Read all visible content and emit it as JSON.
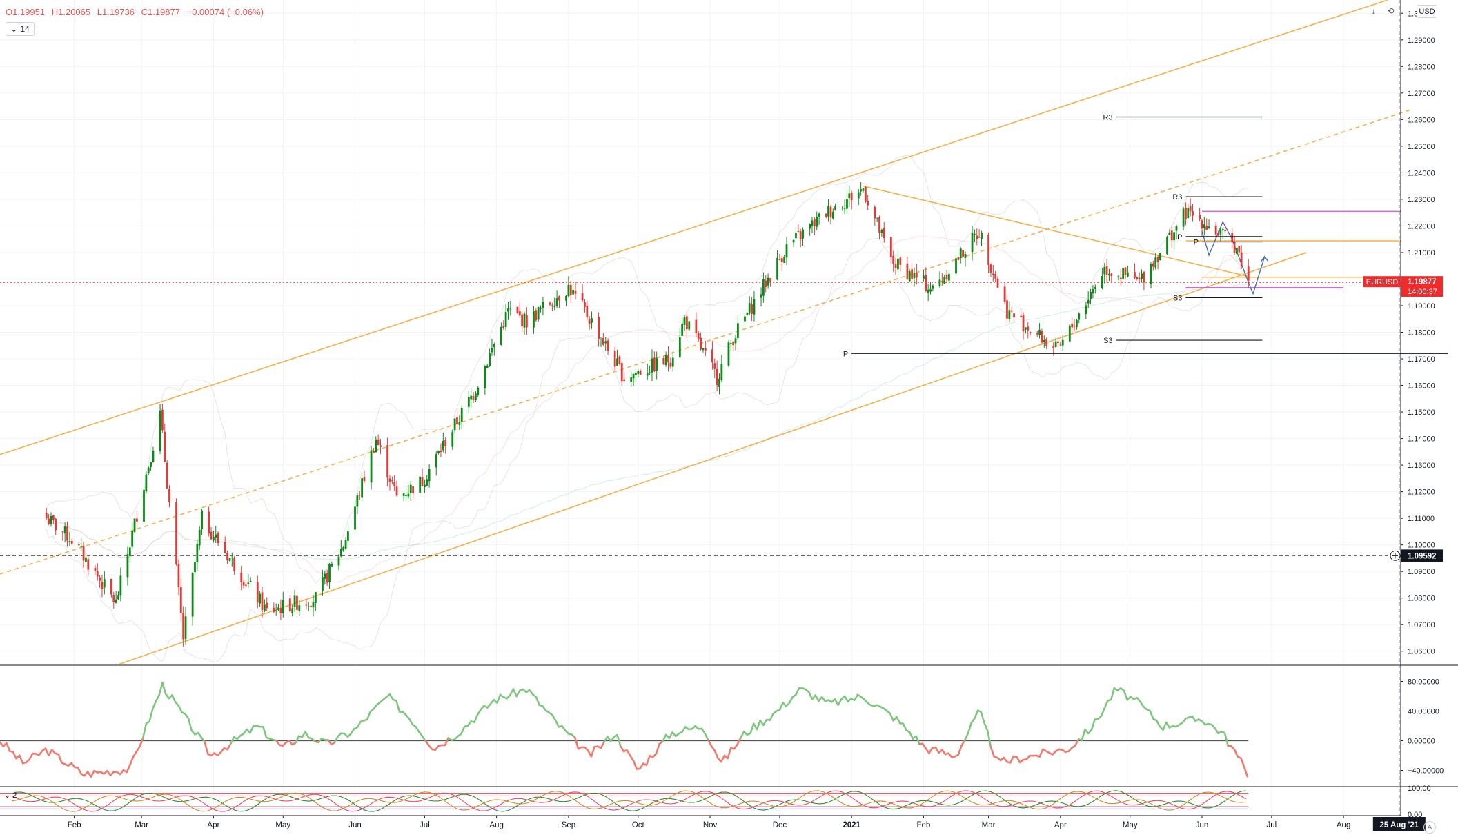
{
  "header": {
    "ohlc": {
      "open": "O1.19951",
      "high": "H1.20065",
      "low": "L1.19736",
      "close": "C1.19877",
      "change": "−0.00074 (−0.06%)"
    },
    "interval_badge": "14",
    "currency": "USD",
    "auto_label": "A",
    "sub_indicator_badge": "2"
  },
  "colors": {
    "up": "#089981",
    "up_candle": "#0b8a16",
    "down": "#e53935",
    "channel": "#f7b04a",
    "pivot": "#131722",
    "magenta": "#e040fb",
    "osc_pos": "#7fc77f",
    "osc_neg": "#f07a6e",
    "price_badge": "#ef2b2b"
  },
  "chart_data": [
    {
      "type": "candlestick",
      "symbol": "EURUSD",
      "last_price": "1.19877",
      "countdown": "14:00:37",
      "crosshair_price": "1.09592",
      "crosshair_date": "25 Aug '21",
      "y_axis": {
        "min": 1.055,
        "max": 1.305,
        "ticks": [
          "1.30000",
          "1.29000",
          "1.28000",
          "1.27000",
          "1.26000",
          "1.25000",
          "1.24000",
          "1.23000",
          "1.22000",
          "1.21000",
          "1.20000",
          "1.19000",
          "1.18000",
          "1.17000",
          "1.16000",
          "1.15000",
          "1.14000",
          "1.13000",
          "1.12000",
          "1.11000",
          "1.10000",
          "1.09000",
          "1.08000",
          "1.07000",
          "1.06000"
        ]
      },
      "x_axis": {
        "labels": [
          "Feb",
          "Mar",
          "Apr",
          "May",
          "Jun",
          "Jul",
          "Aug",
          "Sep",
          "Oct",
          "Nov",
          "Dec",
          "2021",
          "Feb",
          "Mar",
          "Apr",
          "May",
          "Jun",
          "Jul",
          "Aug"
        ]
      },
      "anchors": [
        [
          "2020-01-20",
          1.11
        ],
        [
          "2020-01-31",
          1.102
        ],
        [
          "2020-02-19",
          1.078
        ],
        [
          "2020-03-09",
          1.149
        ],
        [
          "2020-03-19",
          1.065
        ],
        [
          "2020-03-27",
          1.11
        ],
        [
          "2020-04-24",
          1.075
        ],
        [
          "2020-05-06",
          1.078
        ],
        [
          "2020-05-15",
          1.08
        ],
        [
          "2020-05-27",
          1.1
        ],
        [
          "2020-06-10",
          1.14
        ],
        [
          "2020-06-19",
          1.118
        ],
        [
          "2020-06-30",
          1.124
        ],
        [
          "2020-07-22",
          1.157
        ],
        [
          "2020-08-06",
          1.188
        ],
        [
          "2020-08-14",
          1.184
        ],
        [
          "2020-09-01",
          1.197
        ],
        [
          "2020-09-11",
          1.184
        ],
        [
          "2020-09-25",
          1.163
        ],
        [
          "2020-10-15",
          1.17
        ],
        [
          "2020-10-21",
          1.185
        ],
        [
          "2020-11-04",
          1.163
        ],
        [
          "2020-11-11",
          1.178
        ],
        [
          "2020-12-04",
          1.212
        ],
        [
          "2020-12-21",
          1.225
        ],
        [
          "2021-01-06",
          1.234
        ],
        [
          "2021-01-18",
          1.207
        ],
        [
          "2021-02-05",
          1.196
        ],
        [
          "2021-02-25",
          1.218
        ],
        [
          "2021-03-09",
          1.188
        ],
        [
          "2021-03-31",
          1.173
        ],
        [
          "2021-04-20",
          1.204
        ],
        [
          "2021-05-05",
          1.199
        ],
        [
          "2021-05-25",
          1.225
        ],
        [
          "2021-06-01",
          1.222
        ],
        [
          "2021-06-16",
          1.212
        ],
        [
          "2021-06-21",
          1.1988
        ]
      ],
      "channel": {
        "upper": [
          [
            "2019-12-31",
            1.134
          ],
          [
            "2021-08-20",
            1.305
          ]
        ],
        "lower": [
          [
            "2020-02-20",
            1.055
          ],
          [
            "2021-07-16",
            1.21
          ]
        ],
        "mid": [
          [
            "2019-12-31",
            1.089
          ],
          [
            "2021-08-31",
            1.264
          ]
        ],
        "downtrend": [
          [
            "2021-01-06",
            1.235
          ],
          [
            "2021-06-21",
            1.201
          ]
        ]
      },
      "pivot_levels": [
        {
          "label": "R3",
          "price": 1.261,
          "from": "2021-04-25",
          "to": "2021-06-27"
        },
        {
          "label": "R3",
          "price": 1.231,
          "from": "2021-05-25",
          "to": "2021-06-27"
        },
        {
          "label": "P",
          "price": 1.216,
          "from": "2021-05-25",
          "to": "2021-06-27"
        },
        {
          "label": "P",
          "price": 1.214,
          "from": "2021-06-01",
          "to": "2021-06-27"
        },
        {
          "label": "S3",
          "price": 1.193,
          "from": "2021-05-25",
          "to": "2021-06-27"
        },
        {
          "label": "S3",
          "price": 1.177,
          "from": "2021-04-25",
          "to": "2021-06-27"
        },
        {
          "label": "P",
          "price": 1.172,
          "from": "2021-01-01",
          "to": "2021-09-15"
        }
      ]
    },
    {
      "type": "line",
      "name": "oscillator",
      "ylim": [
        -60,
        100
      ],
      "ticks": [
        "80.00000",
        "40.00000",
        "0.00000",
        "−40.00000"
      ],
      "anchors": [
        [
          "2019-12-31",
          0
        ],
        [
          "2020-01-10",
          -30
        ],
        [
          "2020-01-20",
          -12
        ],
        [
          "2020-02-05",
          -45
        ],
        [
          "2020-02-25",
          -38
        ],
        [
          "2020-03-10",
          75
        ],
        [
          "2020-03-20",
          30
        ],
        [
          "2020-03-31",
          -20
        ],
        [
          "2020-04-10",
          0
        ],
        [
          "2020-04-20",
          20
        ],
        [
          "2020-05-01",
          -10
        ],
        [
          "2020-05-10",
          10
        ],
        [
          "2020-05-20",
          -5
        ],
        [
          "2020-06-01",
          15
        ],
        [
          "2020-06-15",
          60
        ],
        [
          "2020-06-25",
          30
        ],
        [
          "2020-07-05",
          -10
        ],
        [
          "2020-07-15",
          10
        ],
        [
          "2020-07-31",
          55
        ],
        [
          "2020-08-14",
          70
        ],
        [
          "2020-08-28",
          20
        ],
        [
          "2020-09-10",
          -20
        ],
        [
          "2020-09-21",
          10
        ],
        [
          "2020-10-01",
          -40
        ],
        [
          "2020-10-15",
          10
        ],
        [
          "2020-10-29",
          20
        ],
        [
          "2020-11-06",
          -30
        ],
        [
          "2020-11-16",
          10
        ],
        [
          "2020-11-30",
          40
        ],
        [
          "2020-12-10",
          70
        ],
        [
          "2020-12-22",
          50
        ],
        [
          "2021-01-06",
          60
        ],
        [
          "2021-01-20",
          30
        ],
        [
          "2021-02-02",
          -10
        ],
        [
          "2021-02-15",
          -20
        ],
        [
          "2021-02-25",
          40
        ],
        [
          "2021-03-05",
          -30
        ],
        [
          "2021-03-20",
          -20
        ],
        [
          "2021-04-05",
          -10
        ],
        [
          "2021-04-15",
          20
        ],
        [
          "2021-04-25",
          70
        ],
        [
          "2021-05-05",
          50
        ],
        [
          "2021-05-15",
          20
        ],
        [
          "2021-06-01",
          30
        ],
        [
          "2021-06-10",
          10
        ],
        [
          "2021-06-16",
          -20
        ],
        [
          "2021-06-21",
          -45
        ]
      ]
    },
    {
      "type": "line",
      "name": "stochastic",
      "ylim": [
        0,
        100
      ],
      "ticks": [
        "100.00",
        "0.00"
      ]
    }
  ]
}
